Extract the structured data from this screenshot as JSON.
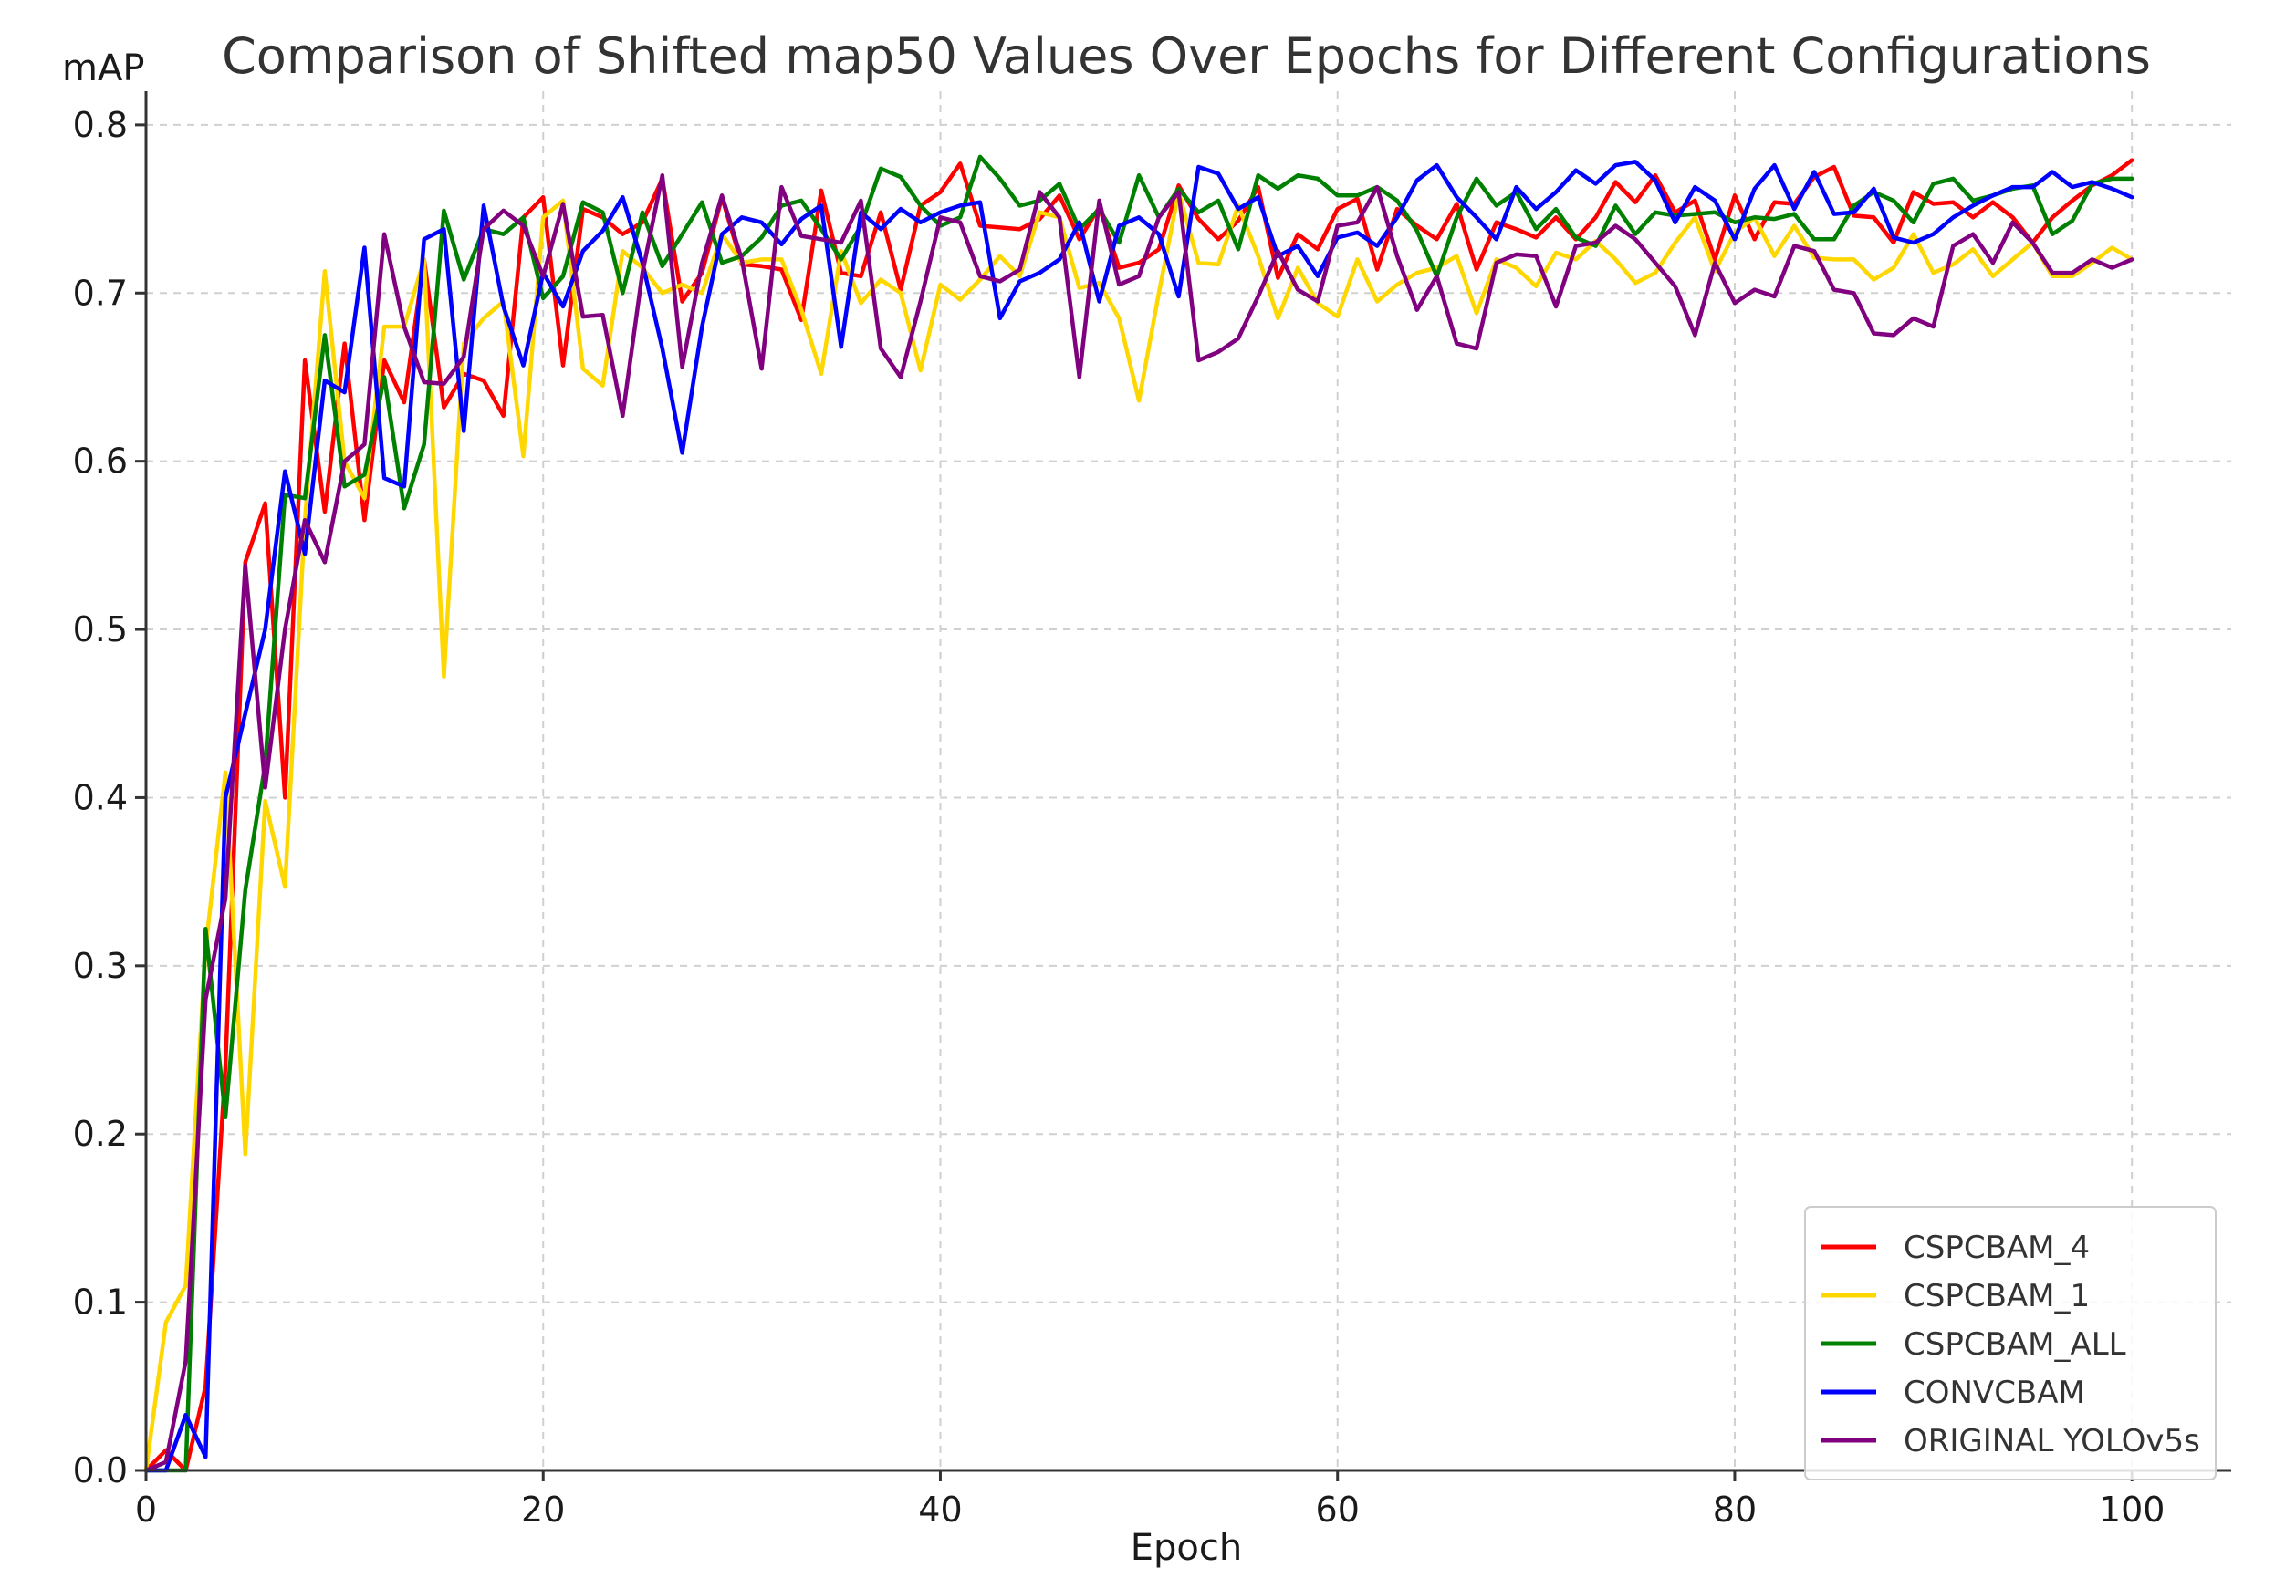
{
  "chart_data": {
    "type": "line",
    "title": "Comparison of Shifted map50 Values Over Epochs for Different Configurations",
    "xlabel": "Epoch",
    "ylabel": "mAP",
    "xlim": [
      0,
      105
    ],
    "ylim": [
      0,
      0.82
    ],
    "xticks": [
      0,
      20,
      40,
      60,
      80,
      100
    ],
    "yticks": [
      0.0,
      0.1,
      0.2,
      0.3,
      0.4,
      0.5,
      0.6,
      0.7,
      0.8
    ],
    "xtick_labels": [
      "0",
      "20",
      "40",
      "60",
      "80",
      "100"
    ],
    "ytick_labels": [
      "0.0",
      "0.1",
      "0.2",
      "0.3",
      "0.4",
      "0.5",
      "0.6",
      "0.7",
      "0.8"
    ],
    "grid": true,
    "legend_position": "bottom-right",
    "x": [
      0,
      1,
      2,
      3,
      4,
      5,
      6,
      7,
      8,
      9,
      10,
      11,
      12,
      13,
      14,
      15,
      16,
      17,
      18,
      19,
      20,
      21,
      22,
      23,
      24,
      25,
      26,
      27,
      28,
      29,
      30,
      31,
      32,
      33,
      34,
      35,
      36,
      37,
      38,
      39,
      40,
      41,
      42,
      43,
      44,
      45,
      46,
      47,
      48,
      49,
      50,
      51,
      52,
      53,
      54,
      55,
      56,
      57,
      58,
      59,
      60,
      61,
      62,
      63,
      64,
      65,
      66,
      67,
      68,
      69,
      70,
      71,
      72,
      73,
      74,
      75,
      76,
      77,
      78,
      79,
      80,
      81,
      82,
      83,
      84,
      85,
      86,
      87,
      88,
      89,
      90,
      91,
      92,
      93,
      94,
      95,
      96,
      97,
      98,
      99,
      100
    ],
    "series": [
      {
        "name": "CSPCBAM_4",
        "color": "#ff0000",
        "values": [
          0.0,
          0.012,
          0.0,
          0.05,
          0.24,
          0.54,
          0.575,
          0.4,
          0.66,
          0.57,
          0.67,
          0.565,
          0.66,
          0.635,
          0.72,
          0.632,
          0.652,
          0.648,
          0.627,
          0.745,
          0.757,
          0.657,
          0.75,
          0.745,
          0.735,
          0.742,
          0.768,
          0.695,
          0.712,
          0.757,
          0.717,
          0.716,
          0.714,
          0.684,
          0.761,
          0.712,
          0.71,
          0.748,
          0.702,
          0.752,
          0.76,
          0.777,
          0.74,
          0.739,
          0.738,
          0.744,
          0.758,
          0.732,
          0.751,
          0.715,
          0.718,
          0.726,
          0.764,
          0.744,
          0.732,
          0.743,
          0.763,
          0.709,
          0.735,
          0.726,
          0.75,
          0.756,
          0.714,
          0.75,
          0.74,
          0.732,
          0.753,
          0.714,
          0.742,
          0.738,
          0.733,
          0.745,
          0.732,
          0.745,
          0.766,
          0.754,
          0.77,
          0.748,
          0.755,
          0.72,
          0.758,
          0.732,
          0.754,
          0.753,
          0.769,
          0.775,
          0.746,
          0.745,
          0.73,
          0.76,
          0.753,
          0.754,
          0.745,
          0.754,
          0.745,
          0.73,
          0.745,
          0.755,
          0.764,
          0.77,
          0.779
        ]
      },
      {
        "name": "CSPCBAM_1",
        "color": "#ffd700",
        "values": [
          0.0,
          0.088,
          0.11,
          0.31,
          0.415,
          0.188,
          0.398,
          0.347,
          0.565,
          0.713,
          0.6,
          0.578,
          0.68,
          0.68,
          0.72,
          0.472,
          0.67,
          0.685,
          0.695,
          0.603,
          0.745,
          0.755,
          0.655,
          0.645,
          0.725,
          0.715,
          0.7,
          0.705,
          0.7,
          0.735,
          0.718,
          0.72,
          0.72,
          0.69,
          0.652,
          0.725,
          0.694,
          0.708,
          0.7,
          0.654,
          0.705,
          0.696,
          0.708,
          0.722,
          0.71,
          0.748,
          0.745,
          0.703,
          0.706,
          0.685,
          0.636,
          0.7,
          0.76,
          0.718,
          0.717,
          0.752,
          0.722,
          0.685,
          0.715,
          0.694,
          0.686,
          0.72,
          0.695,
          0.705,
          0.712,
          0.715,
          0.722,
          0.688,
          0.72,
          0.715,
          0.704,
          0.724,
          0.72,
          0.731,
          0.72,
          0.706,
          0.712,
          0.73,
          0.745,
          0.713,
          0.736,
          0.745,
          0.722,
          0.74,
          0.721,
          0.72,
          0.72,
          0.708,
          0.715,
          0.735,
          0.712,
          0.717,
          0.726,
          0.71,
          0.72,
          0.73,
          0.71,
          0.71,
          0.718,
          0.727,
          0.72
        ]
      },
      {
        "name": "CSPCBAM_ALL",
        "color": "#008000",
        "values": [
          0.0,
          0.0,
          0.0,
          0.322,
          0.21,
          0.345,
          0.42,
          0.58,
          0.578,
          0.675,
          0.585,
          0.592,
          0.65,
          0.572,
          0.61,
          0.749,
          0.708,
          0.738,
          0.735,
          0.745,
          0.697,
          0.71,
          0.754,
          0.748,
          0.7,
          0.748,
          0.716,
          0.735,
          0.754,
          0.718,
          0.722,
          0.733,
          0.752,
          0.755,
          0.738,
          0.72,
          0.74,
          0.774,
          0.769,
          0.752,
          0.74,
          0.745,
          0.781,
          0.768,
          0.752,
          0.755,
          0.765,
          0.738,
          0.75,
          0.73,
          0.77,
          0.745,
          0.762,
          0.748,
          0.755,
          0.726,
          0.77,
          0.762,
          0.77,
          0.768,
          0.758,
          0.758,
          0.763,
          0.755,
          0.737,
          0.71,
          0.745,
          0.768,
          0.752,
          0.76,
          0.738,
          0.75,
          0.733,
          0.728,
          0.752,
          0.735,
          0.748,
          0.746,
          0.747,
          0.748,
          0.742,
          0.745,
          0.744,
          0.747,
          0.732,
          0.732,
          0.752,
          0.76,
          0.755,
          0.742,
          0.765,
          0.768,
          0.755,
          0.758,
          0.762,
          0.764,
          0.735,
          0.743,
          0.765,
          0.768,
          0.768
        ]
      },
      {
        "name": "CONVCBAM",
        "color": "#0000ff",
        "values": [
          0.0,
          0.0,
          0.033,
          0.008,
          0.4,
          0.45,
          0.5,
          0.594,
          0.545,
          0.648,
          0.641,
          0.727,
          0.59,
          0.585,
          0.732,
          0.738,
          0.618,
          0.752,
          0.692,
          0.657,
          0.712,
          0.692,
          0.725,
          0.737,
          0.757,
          0.718,
          0.667,
          0.605,
          0.68,
          0.735,
          0.745,
          0.742,
          0.729,
          0.744,
          0.752,
          0.668,
          0.748,
          0.738,
          0.75,
          0.742,
          0.748,
          0.752,
          0.754,
          0.685,
          0.707,
          0.712,
          0.72,
          0.742,
          0.695,
          0.74,
          0.745,
          0.735,
          0.698,
          0.775,
          0.771,
          0.75,
          0.757,
          0.722,
          0.728,
          0.71,
          0.733,
          0.736,
          0.728,
          0.745,
          0.767,
          0.776,
          0.757,
          0.745,
          0.732,
          0.763,
          0.75,
          0.76,
          0.773,
          0.765,
          0.776,
          0.778,
          0.767,
          0.742,
          0.763,
          0.755,
          0.732,
          0.762,
          0.776,
          0.75,
          0.772,
          0.747,
          0.748,
          0.762,
          0.733,
          0.73,
          0.735,
          0.745,
          0.752,
          0.758,
          0.763,
          0.763,
          0.772,
          0.763,
          0.766,
          0.762,
          0.757
        ]
      },
      {
        "name": "ORIGINAL YOLOv5s",
        "color": "#800080",
        "values": [
          0.0,
          0.005,
          0.065,
          0.28,
          0.34,
          0.538,
          0.406,
          0.5,
          0.565,
          0.54,
          0.6,
          0.61,
          0.735,
          0.68,
          0.647,
          0.646,
          0.662,
          0.738,
          0.749,
          0.74,
          0.71,
          0.753,
          0.686,
          0.687,
          0.627,
          0.712,
          0.77,
          0.656,
          0.718,
          0.758,
          0.72,
          0.655,
          0.763,
          0.734,
          0.732,
          0.73,
          0.755,
          0.667,
          0.65,
          0.695,
          0.745,
          0.742,
          0.71,
          0.707,
          0.714,
          0.76,
          0.745,
          0.65,
          0.755,
          0.705,
          0.71,
          0.745,
          0.76,
          0.66,
          0.665,
          0.673,
          0.698,
          0.725,
          0.702,
          0.695,
          0.74,
          0.742,
          0.763,
          0.722,
          0.69,
          0.71,
          0.67,
          0.667,
          0.718,
          0.723,
          0.722,
          0.692,
          0.728,
          0.73,
          0.74,
          0.732,
          0.718,
          0.704,
          0.675,
          0.718,
          0.694,
          0.702,
          0.698,
          0.728,
          0.725,
          0.702,
          0.7,
          0.676,
          0.675,
          0.685,
          0.68,
          0.728,
          0.735,
          0.718,
          0.742,
          0.73,
          0.712,
          0.712,
          0.72,
          0.715,
          0.72
        ]
      }
    ]
  }
}
